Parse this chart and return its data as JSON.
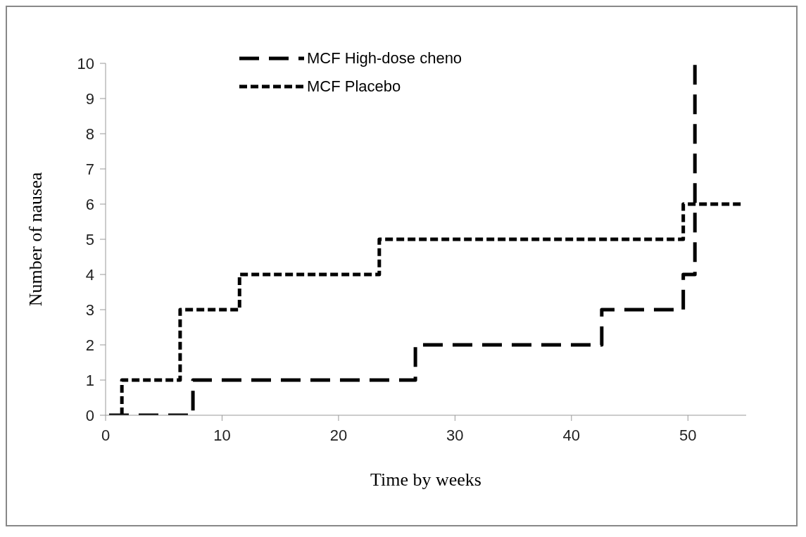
{
  "chart_data": {
    "type": "step",
    "xlabel": "Time by weeks",
    "ylabel": "Number of nausea",
    "xlim": [
      0,
      55
    ],
    "xticks": [
      0,
      10,
      20,
      30,
      40,
      50
    ],
    "ylim": [
      0,
      10
    ],
    "yticks": [
      0,
      1,
      2,
      3,
      4,
      5,
      6,
      7,
      8,
      9,
      10
    ],
    "grid": false,
    "legend": "top left",
    "marker": "none",
    "line_style": "dashed",
    "series": [
      {
        "name": "MCF High-dose cheno",
        "color": "#000000",
        "x": [
          0.3,
          7.5,
          26.6,
          42.6,
          49.6,
          50.6
        ],
        "values": [
          0,
          1,
          2,
          3,
          4,
          10
        ]
      },
      {
        "name": "MCF Placebo",
        "color": "#000000",
        "x": [
          1.4,
          1.4,
          6.4,
          11.5,
          23.5,
          49.6,
          54.8
        ],
        "values": [
          0,
          1,
          3,
          4,
          5,
          6,
          6
        ]
      }
    ]
  }
}
